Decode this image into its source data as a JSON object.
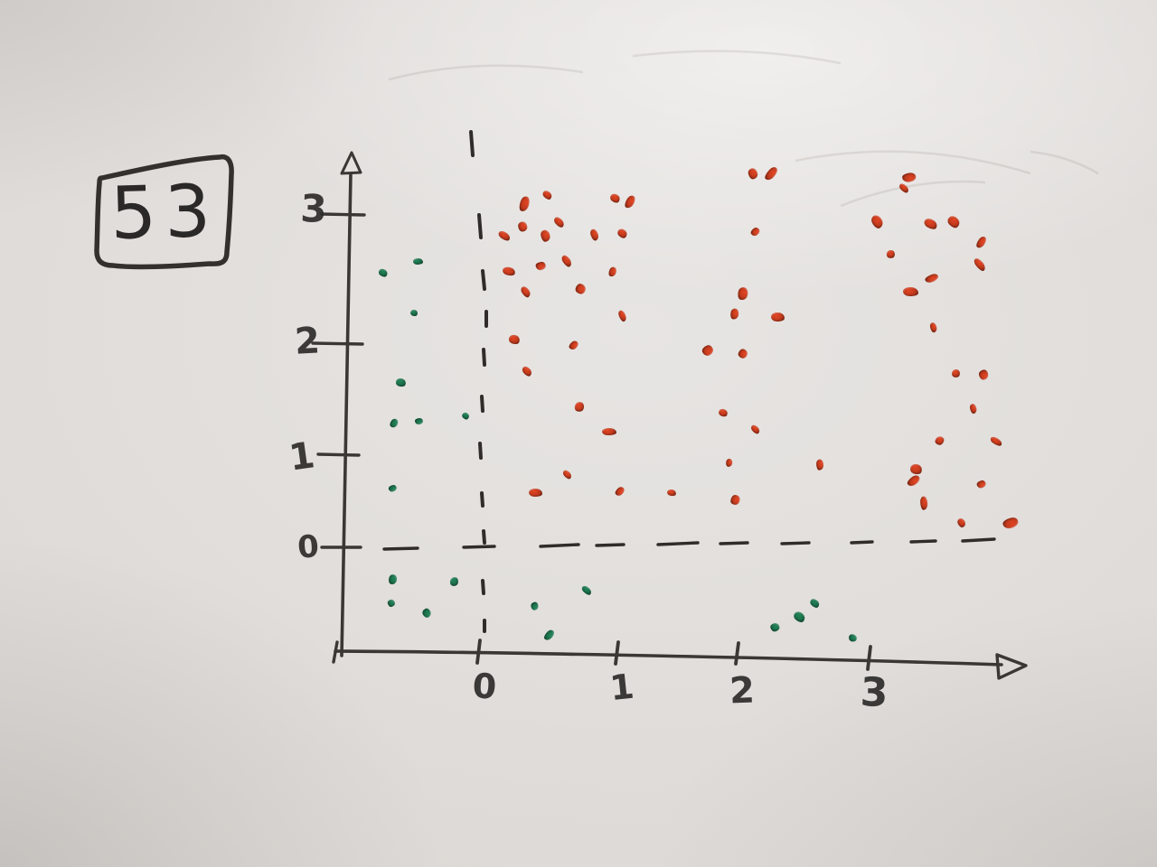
{
  "board": {
    "number_label": "53"
  },
  "chart_data": {
    "type": "scatter",
    "title": "",
    "xlabel": "",
    "ylabel": "",
    "x_tick_labels": [
      "0",
      "1",
      "2",
      "3"
    ],
    "y_tick_labels": [
      "0",
      "1",
      "2",
      "3"
    ],
    "xlim": [
      -1.1,
      4.2
    ],
    "ylim": [
      -1.3,
      3.6
    ],
    "grid": false,
    "dashed_guides": [
      "vertical line at x=0",
      "horizontal line at y=0"
    ],
    "legend": "none",
    "series": [
      {
        "name": "red",
        "color": "#bf3a1d",
        "points": [
          [
            0.5,
            3.15
          ],
          [
            0.33,
            3.08
          ],
          [
            0.99,
            3.12
          ],
          [
            1.11,
            3.09
          ],
          [
            0.58,
            2.94
          ],
          [
            0.32,
            2.9
          ],
          [
            0.18,
            2.83
          ],
          [
            0.48,
            2.83
          ],
          [
            0.84,
            2.84
          ],
          [
            1.05,
            2.85
          ],
          [
            0.64,
            2.64
          ],
          [
            0.45,
            2.6
          ],
          [
            0.22,
            2.56
          ],
          [
            0.97,
            2.55
          ],
          [
            0.34,
            2.4
          ],
          [
            0.74,
            2.42
          ],
          [
            1.05,
            2.21
          ],
          [
            0.26,
            2.03
          ],
          [
            0.69,
            1.98
          ],
          [
            2.12,
            3.31
          ],
          [
            2.26,
            3.31
          ],
          [
            2.14,
            2.86
          ],
          [
            2.05,
            2.38
          ],
          [
            1.98,
            2.23
          ],
          [
            2.31,
            2.2
          ],
          [
            1.76,
            1.93
          ],
          [
            2.05,
            1.9
          ],
          [
            3.3,
            3.28
          ],
          [
            3.26,
            3.2
          ],
          [
            3.06,
            2.94
          ],
          [
            3.46,
            2.92
          ],
          [
            3.63,
            2.94
          ],
          [
            3.84,
            2.78
          ],
          [
            3.16,
            2.69
          ],
          [
            3.83,
            2.61
          ],
          [
            3.47,
            2.5
          ],
          [
            3.31,
            2.4
          ],
          [
            3.48,
            2.12
          ],
          [
            0.35,
            1.75
          ],
          [
            0.73,
            1.43
          ],
          [
            0.64,
            0.78
          ],
          [
            0.41,
            0.58
          ],
          [
            1.89,
            1.37
          ],
          [
            2.14,
            1.22
          ],
          [
            0.95,
            1.2
          ],
          [
            1.94,
            0.91
          ],
          [
            2.63,
            0.88
          ],
          [
            1.03,
            0.6
          ],
          [
            1.46,
            0.58
          ],
          [
            1.99,
            0.5
          ],
          [
            3.65,
            1.73
          ],
          [
            3.86,
            1.71
          ],
          [
            3.78,
            1.41
          ],
          [
            3.53,
            1.12
          ],
          [
            3.95,
            1.12
          ],
          [
            3.35,
            0.84
          ],
          [
            3.33,
            0.71
          ],
          [
            3.84,
            0.68
          ],
          [
            3.41,
            0.47
          ],
          [
            3.69,
            0.26
          ],
          [
            4.06,
            0.25
          ]
        ]
      },
      {
        "name": "green",
        "color": "#1c6f4a",
        "points": [
          [
            -0.7,
            2.55
          ],
          [
            -0.44,
            2.63
          ],
          [
            -0.47,
            2.23
          ],
          [
            -0.57,
            1.65
          ],
          [
            -0.62,
            1.28
          ],
          [
            -0.44,
            1.3
          ],
          [
            -0.1,
            1.34
          ],
          [
            -0.63,
            0.63
          ],
          [
            -0.63,
            -0.36
          ],
          [
            -0.18,
            -0.38
          ],
          [
            -0.64,
            -0.62
          ],
          [
            -0.38,
            -0.72
          ],
          [
            0.4,
            -0.65
          ],
          [
            0.78,
            -0.48
          ],
          [
            0.51,
            -0.96
          ],
          [
            2.29,
            -0.88
          ],
          [
            2.47,
            -0.76
          ],
          [
            2.59,
            -0.62
          ],
          [
            2.87,
            -1.0
          ]
        ]
      }
    ]
  },
  "colors": {
    "marker_ink": "#3a3734",
    "red_dot": "#bf3a1d",
    "green_dot": "#1c6f4a",
    "board_surface": "#ddd9d6"
  }
}
